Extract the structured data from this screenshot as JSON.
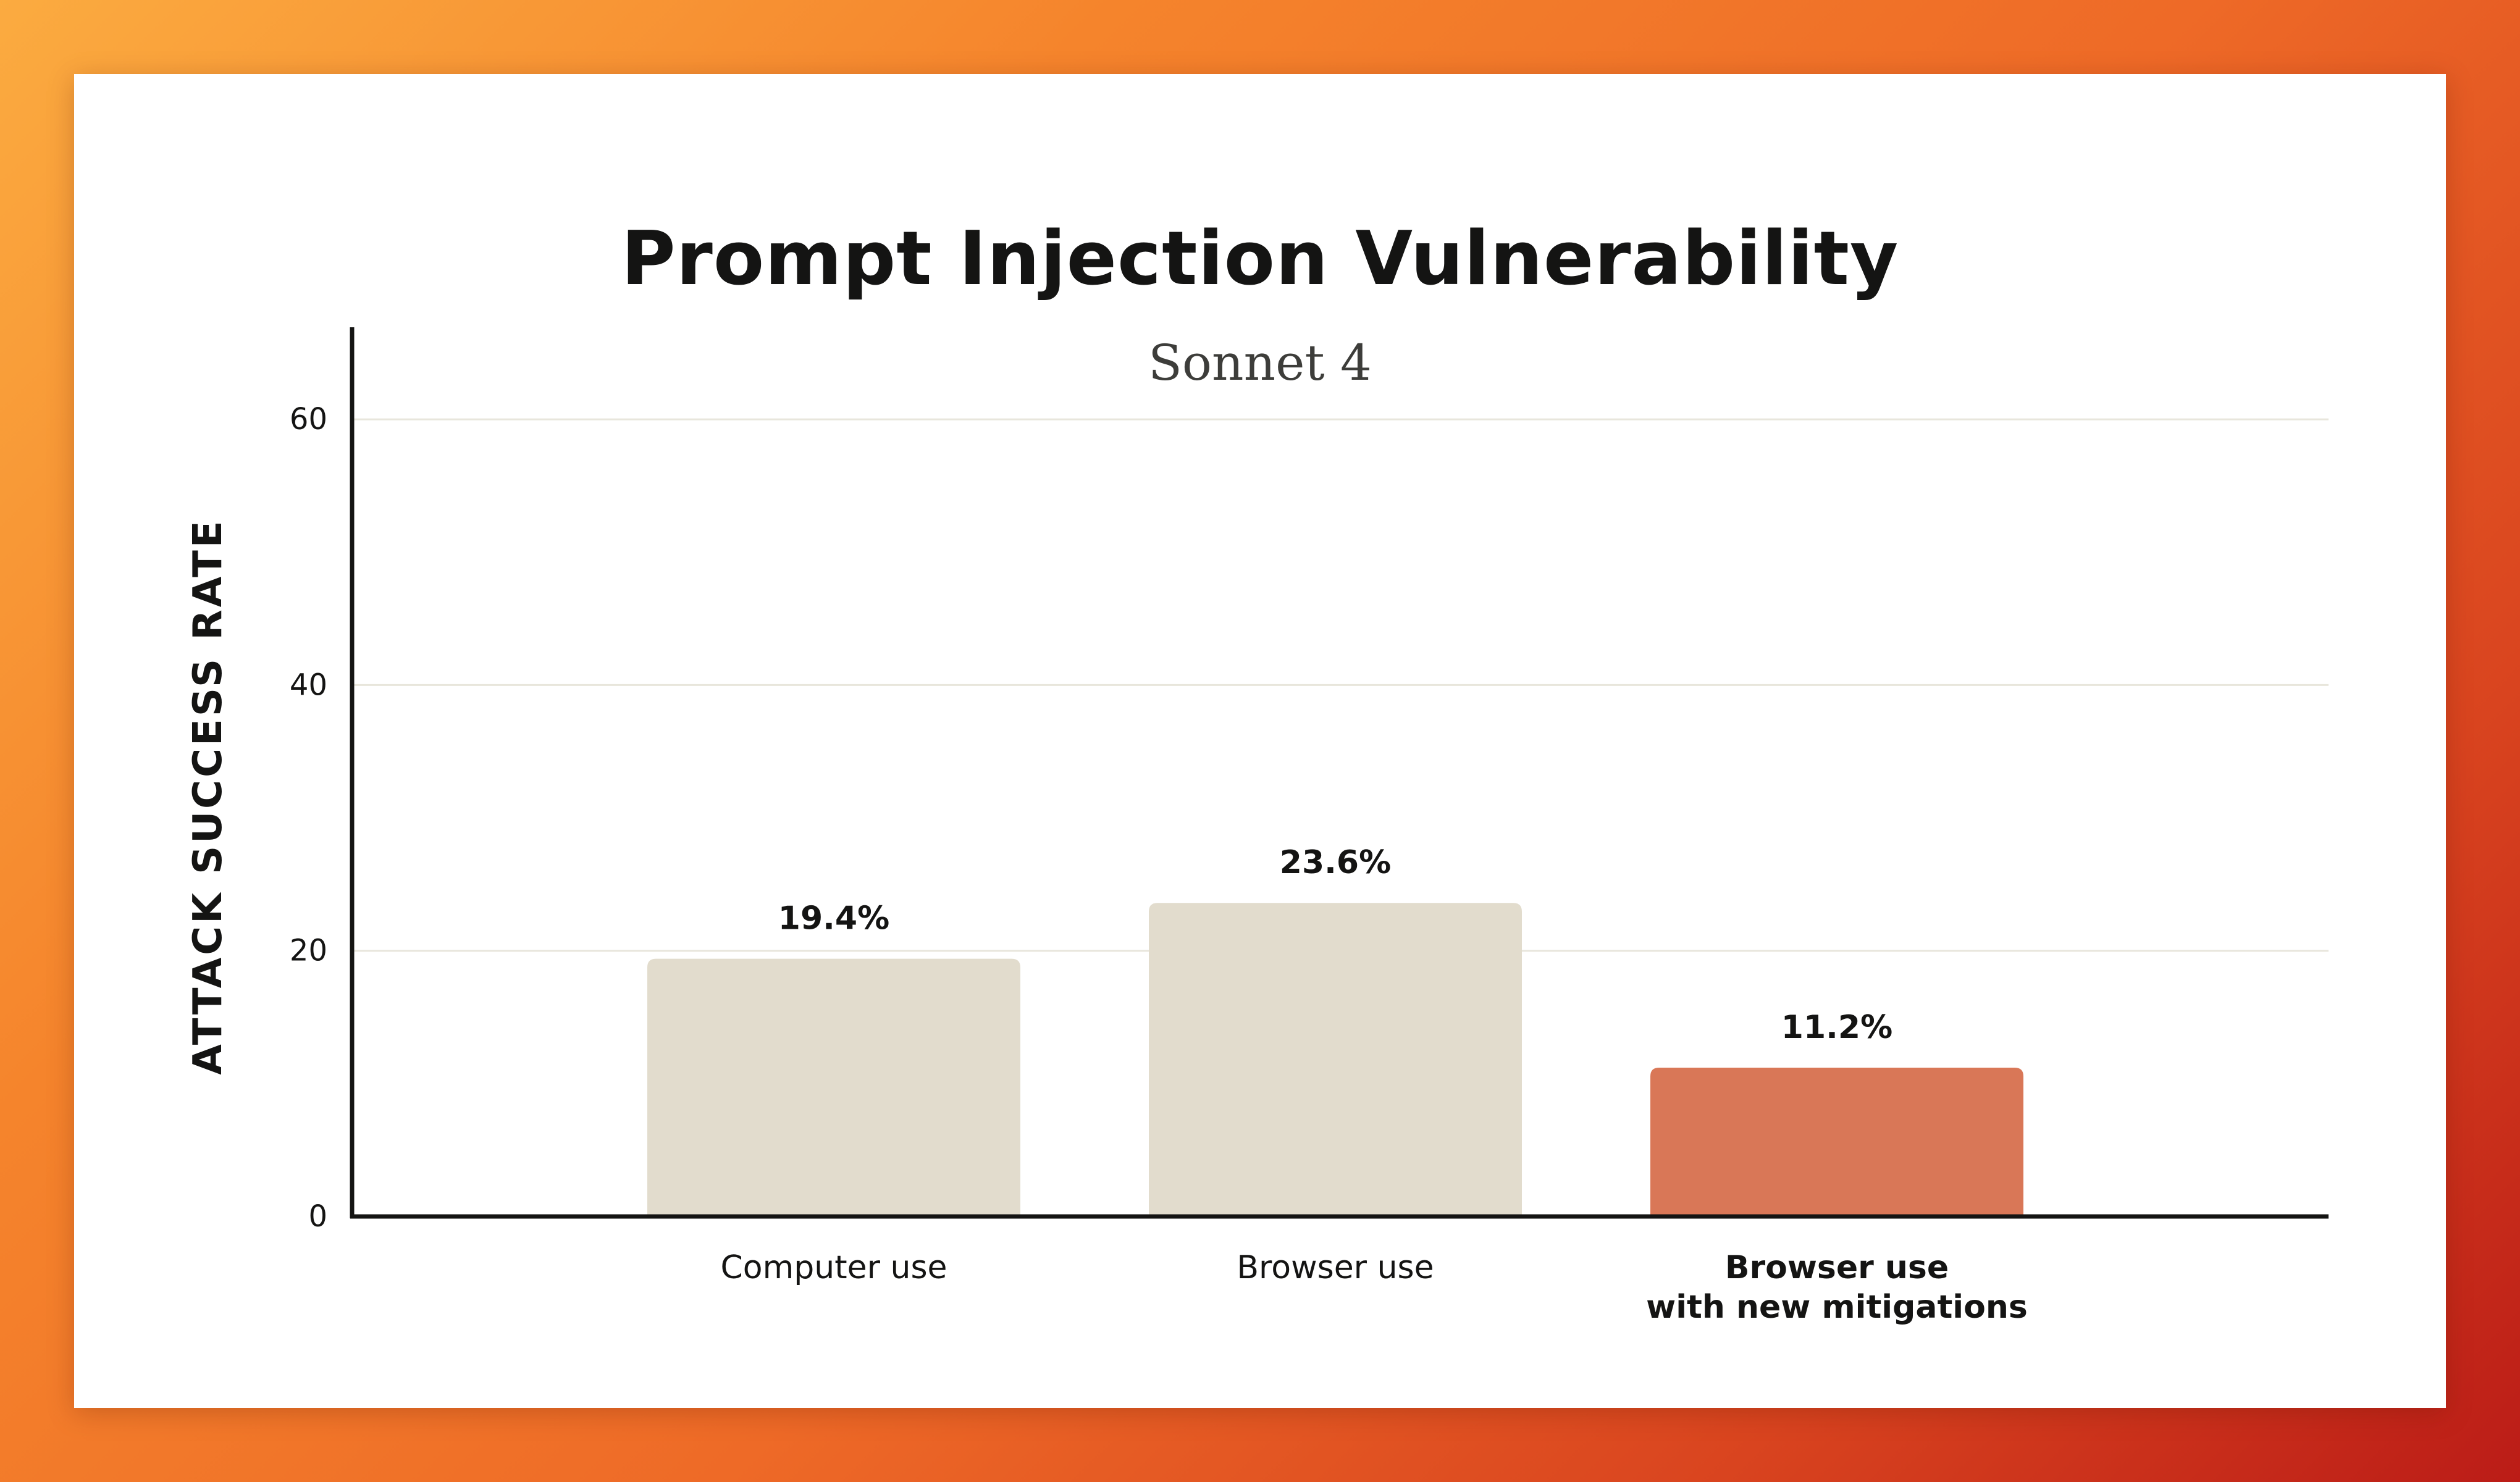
{
  "colors": {
    "bar_default": "#e2dccd",
    "bar_highlight": "#d97757",
    "axis": "#141413",
    "grid": "#e8e6dc"
  },
  "chart_data": {
    "type": "bar",
    "title": "Prompt Injection Vulnerability",
    "subtitle": "Sonnet 4",
    "ylabel": "ATTACK SUCCESS RATE",
    "xlabel": "",
    "ylim": [
      0,
      66
    ],
    "yticks": [
      0,
      20,
      40,
      60
    ],
    "grid": true,
    "categories": [
      [
        "Computer use"
      ],
      [
        "Browser use"
      ],
      [
        "Browser use",
        "with new mitigations"
      ]
    ],
    "values": [
      19.4,
      23.6,
      11.2
    ],
    "data_labels": [
      "19.4%",
      "23.6%",
      "11.2%"
    ],
    "highlight_index": 2
  }
}
